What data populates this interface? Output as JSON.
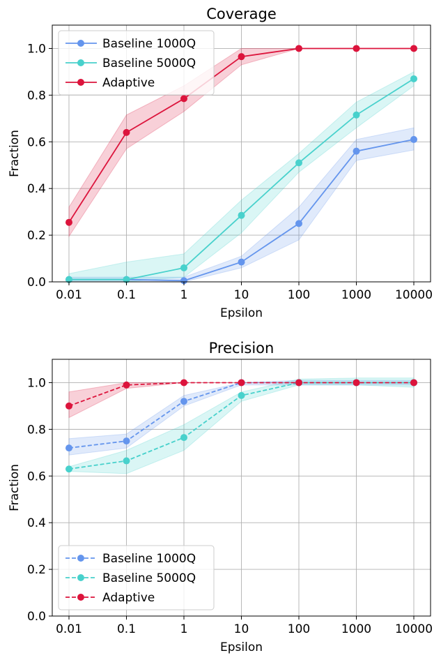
{
  "chart_data": [
    {
      "type": "line",
      "title": "Coverage",
      "xlabel": "Epsilon",
      "ylabel": "Fraction",
      "x_scale": "log",
      "categories": [
        "0.01",
        "0.1",
        "1",
        "10",
        "100",
        "1000",
        "10000"
      ],
      "ylim": [
        0.0,
        1.1
      ],
      "yticks": [
        "0.0",
        "0.2",
        "0.4",
        "0.6",
        "0.8",
        "1.0"
      ],
      "grid": true,
      "legend_position": "top-left",
      "line_style": "solid",
      "series": [
        {
          "name": "Baseline 1000Q",
          "color": "#6495ed",
          "values": [
            0.01,
            0.01,
            0.005,
            0.085,
            0.25,
            0.56,
            0.61
          ],
          "lower": [
            0.0,
            0.0,
            0.0,
            0.06,
            0.18,
            0.52,
            0.565
          ],
          "upper": [
            0.02,
            0.02,
            0.02,
            0.11,
            0.32,
            0.61,
            0.66
          ]
        },
        {
          "name": "Baseline 5000Q",
          "color": "#48d1cc",
          "values": [
            0.01,
            0.01,
            0.06,
            0.285,
            0.51,
            0.715,
            0.87
          ],
          "lower": [
            0.0,
            0.0,
            0.02,
            0.21,
            0.47,
            0.66,
            0.84
          ],
          "upper": [
            0.035,
            0.085,
            0.12,
            0.35,
            0.55,
            0.77,
            0.9
          ]
        },
        {
          "name": "Adaptive",
          "color": "#dc143c",
          "values": [
            0.255,
            0.64,
            0.785,
            0.965,
            1.0,
            1.0,
            1.0
          ],
          "lower": [
            0.195,
            0.57,
            0.73,
            0.93,
            1.0,
            1.0,
            1.0
          ],
          "upper": [
            0.32,
            0.715,
            0.84,
            1.0,
            1.0,
            1.0,
            1.0
          ]
        }
      ]
    },
    {
      "type": "line",
      "title": "Precision",
      "xlabel": "Epsilon",
      "ylabel": "Fraction",
      "x_scale": "log",
      "categories": [
        "0.01",
        "0.1",
        "1",
        "10",
        "100",
        "1000",
        "10000"
      ],
      "ylim": [
        0.0,
        1.1
      ],
      "yticks": [
        "0.0",
        "0.2",
        "0.4",
        "0.6",
        "0.8",
        "1.0"
      ],
      "grid": true,
      "legend_position": "bottom-left",
      "line_style": "dashed",
      "series": [
        {
          "name": "Baseline 1000Q",
          "color": "#6495ed",
          "values": [
            0.72,
            0.75,
            0.92,
            1.0,
            1.0,
            1.0,
            1.0
          ],
          "lower": [
            0.69,
            0.72,
            0.9,
            0.99,
            0.99,
            0.99,
            0.99
          ],
          "upper": [
            0.76,
            0.78,
            0.945,
            1.0,
            1.01,
            1.01,
            1.01
          ]
        },
        {
          "name": "Baseline 5000Q",
          "color": "#48d1cc",
          "values": [
            0.63,
            0.665,
            0.765,
            0.945,
            1.0,
            1.0,
            1.0
          ],
          "lower": [
            0.62,
            0.61,
            0.71,
            0.92,
            0.99,
            0.99,
            0.98
          ],
          "upper": [
            0.64,
            0.71,
            0.82,
            0.96,
            1.015,
            1.02,
            1.02
          ]
        },
        {
          "name": "Adaptive",
          "color": "#dc143c",
          "values": [
            0.9,
            0.99,
            1.0,
            1.0,
            1.0,
            1.0,
            1.0
          ],
          "lower": [
            0.85,
            0.975,
            1.0,
            1.0,
            1.0,
            1.0,
            1.0
          ],
          "upper": [
            0.96,
            1.0,
            1.0,
            1.0,
            1.0,
            1.0,
            1.0
          ]
        }
      ]
    }
  ]
}
